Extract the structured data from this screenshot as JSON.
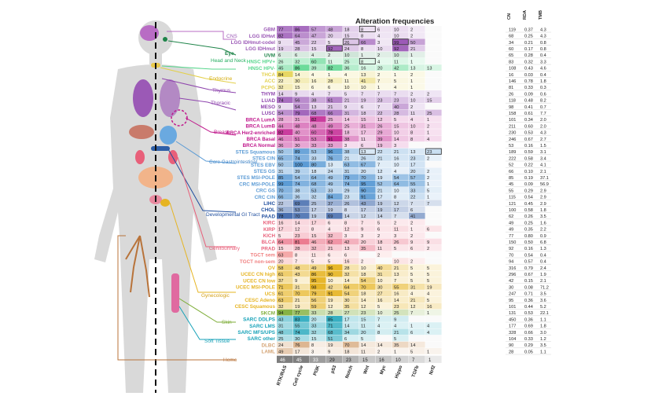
{
  "chart_data": {
    "type": "heatmap",
    "title": "Alteration frequencies",
    "pathways": [
      "RTK/RAS",
      "Cell cycle",
      "PI3K",
      "p53",
      "Notch",
      "Wnt",
      "Myc",
      "Hippo",
      "TGFb",
      "Nrf2"
    ],
    "right_headers": [
      "CN",
      "RDA",
      "TMB"
    ],
    "body_labels": [
      "CNS",
      "Eye",
      "Head and Neck",
      "Endocrine",
      "Thymus",
      "Thoracic",
      "Breast",
      "Core Gastrointestinal",
      "Developmental GI Tract",
      "Genitourinary",
      "Gynecologic",
      "Skin",
      "Soft Tissue",
      "Heme"
    ],
    "rows": [
      {
        "name": "GBM",
        "color": "#9b59b6",
        "values": [
          77,
          86,
          57,
          48,
          18,
          8,
          6,
          10,
          2,
          null
        ],
        "boxed": [
          5
        ],
        "cn": "119",
        "rda": "0.37",
        "tmb": "4.3"
      },
      {
        "name": "LGG IDHwt",
        "color": "#9b59b6",
        "values": [
          82,
          64,
          47,
          20,
          15,
          8,
          4,
          10,
          2,
          null
        ],
        "boxed": [],
        "cn": "68",
        "rda": "0.25",
        "tmb": "4.3"
      },
      {
        "name": "LGG IDHmut-codel",
        "color": "#9b59b6",
        "values": [
          9,
          45,
          22,
          5,
          26,
          66,
          3,
          99,
          50,
          null
        ],
        "boxed": [
          4,
          7
        ],
        "cn": "34",
        "rda": "0.21",
        "tmb": "0.8"
      },
      {
        "name": "LGG IDHmut",
        "color": "#9b59b6",
        "values": [
          19,
          28,
          15,
          92,
          24,
          8,
          10,
          92,
          21,
          null
        ],
        "boxed": [
          3
        ],
        "cn": "60",
        "rda": "0.17",
        "tmb": "0.8"
      },
      {
        "name": "UVM",
        "color": "#1e8449",
        "values": [
          6,
          6,
          4,
          2,
          10,
          1,
          2,
          10,
          1,
          null
        ],
        "boxed": [],
        "cn": "65",
        "rda": "0.28",
        "tmb": "0.4"
      },
      {
        "name": "HNSC HPV+",
        "color": "#58d68d",
        "values": [
          26,
          32,
          60,
          11,
          25,
          8,
          4,
          11,
          1,
          null
        ],
        "boxed": [
          5
        ],
        "cn": "83",
        "rda": "0.32",
        "tmb": "3.3"
      },
      {
        "name": "HNSC HPV-",
        "color": "#58d68d",
        "values": [
          45,
          86,
          39,
          82,
          36,
          16,
          20,
          42,
          13,
          13
        ],
        "boxed": [],
        "cn": "108",
        "rda": "0.43",
        "tmb": "4.6"
      },
      {
        "name": "THCA",
        "color": "#e3d04a",
        "values": [
          84,
          14,
          4,
          1,
          4,
          13,
          2,
          1,
          2,
          null
        ],
        "boxed": [],
        "cn": "16",
        "rda": "0.03",
        "tmb": "0.4"
      },
      {
        "name": "ACC",
        "color": "#e3d04a",
        "values": [
          22,
          30,
          16,
          28,
          11,
          41,
          7,
          5,
          1,
          null
        ],
        "boxed": [],
        "cn": "146",
        "rda": "0.78",
        "tmb": "1.8"
      },
      {
        "name": "PCPG",
        "color": "#e3d04a",
        "values": [
          32,
          15,
          6,
          6,
          10,
          10,
          1,
          4,
          1,
          null
        ],
        "boxed": [],
        "cn": "81",
        "rda": "0.33",
        "tmb": "0.3"
      },
      {
        "name": "THYM",
        "color": "#8e44ad",
        "values": [
          14,
          9,
          4,
          7,
          5,
          7,
          7,
          7,
          2,
          2
        ],
        "boxed": [],
        "cn": "26",
        "rda": "0.09",
        "tmb": "0.6"
      },
      {
        "name": "LUAD",
        "color": "#8e44ad",
        "values": [
          74,
          56,
          38,
          61,
          21,
          19,
          23,
          23,
          10,
          15
        ],
        "boxed": [],
        "cn": "118",
        "rda": "0.48",
        "tmb": "8.2"
      },
      {
        "name": "MESO",
        "color": "#8e44ad",
        "values": [
          9,
          54,
          13,
          21,
          9,
          6,
          7,
          40,
          2,
          null
        ],
        "boxed": [],
        "cn": "98",
        "rda": "0.41",
        "tmb": "0.7"
      },
      {
        "name": "LUSC",
        "color": "#8e44ad",
        "values": [
          54,
          79,
          68,
          66,
          31,
          18,
          22,
          28,
          11,
          25
        ],
        "boxed": [],
        "cn": "158",
        "rda": "0.61",
        "tmb": "7.7"
      },
      {
        "name": "BRCA LumA",
        "color": "#c0188c",
        "values": [
          28,
          31,
          82,
          25,
          14,
          15,
          12,
          5,
          4,
          1
        ],
        "boxed": [],
        "cn": "101",
        "rda": "0.34",
        "tmb": "2.0"
      },
      {
        "name": "BRCA LumB",
        "color": "#c0188c",
        "values": [
          44,
          48,
          48,
          49,
          25,
          31,
          26,
          15,
          10,
          2
        ],
        "boxed": [],
        "cn": "211",
        "rda": "0.60",
        "tmb": "2.0"
      },
      {
        "name": "BRCA Her2-enriched",
        "color": "#c0188c",
        "values": [
          82,
          40,
          60,
          78,
          18,
          17,
          29,
          10,
          8,
          1
        ],
        "boxed": [],
        "cn": "230",
        "rda": "0.53",
        "tmb": "4.3"
      },
      {
        "name": "BRCA Basal",
        "color": "#c0188c",
        "values": [
          46,
          51,
          53,
          91,
          38,
          11,
          39,
          14,
          8,
          4
        ],
        "boxed": [],
        "cn": "246",
        "rda": "0.67",
        "tmb": "2.7"
      },
      {
        "name": "BRCA Normal",
        "color": "#c0188c",
        "values": [
          36,
          30,
          33,
          33,
          3,
          6,
          19,
          3,
          null,
          null
        ],
        "boxed": [],
        "cn": "53",
        "rda": "0.16",
        "tmb": "1.5"
      },
      {
        "name": "STES Squamous",
        "color": "#5b9bd5",
        "values": [
          50,
          89,
          53,
          96,
          38,
          13,
          22,
          21,
          13,
          23
        ],
        "boxed": [
          5,
          9
        ],
        "cn": "189",
        "rda": "0.59",
        "tmb": "3.1"
      },
      {
        "name": "STES CIN",
        "color": "#5b9bd5",
        "values": [
          65,
          74,
          33,
          76,
          21,
          26,
          21,
          16,
          23,
          2
        ],
        "boxed": [],
        "cn": "222",
        "rda": "0.58",
        "tmb": "3.4"
      },
      {
        "name": "STES EBV",
        "color": "#5b9bd5",
        "values": [
          50,
          100,
          80,
          13,
          63,
          67,
          7,
          10,
          17,
          null
        ],
        "boxed": [],
        "cn": "52",
        "rda": "0.22",
        "tmb": "4.1"
      },
      {
        "name": "STES GS",
        "color": "#5b9bd5",
        "values": [
          31,
          39,
          18,
          24,
          31,
          20,
          12,
          4,
          20,
          2
        ],
        "boxed": [],
        "cn": "66",
        "rda": "0.10",
        "tmb": "2.1"
      },
      {
        "name": "STES MSI-POLE",
        "color": "#5b9bd5",
        "values": [
          85,
          54,
          64,
          49,
          79,
          70,
          19,
          54,
          57,
          2
        ],
        "boxed": [],
        "cn": "85",
        "rda": "0.19",
        "tmb": "37.1"
      },
      {
        "name": "CRC MSI-POLE",
        "color": "#5b9bd5",
        "values": [
          99,
          74,
          68,
          49,
          74,
          95,
          52,
          64,
          55,
          1
        ],
        "boxed": [],
        "cn": "45",
        "rda": "0.09",
        "tmb": "56.9"
      },
      {
        "name": "CRC GS",
        "color": "#5b9bd5",
        "values": [
          70,
          38,
          53,
          33,
          29,
          90,
          21,
          10,
          33,
          5
        ],
        "boxed": [],
        "cn": "55",
        "rda": "0.29",
        "tmb": "2.9"
      },
      {
        "name": "CRC CIN",
        "color": "#5b9bd5",
        "values": [
          66,
          36,
          32,
          84,
          23,
          91,
          17,
          8,
          22,
          1
        ],
        "boxed": [],
        "cn": "115",
        "rda": "0.54",
        "tmb": "2.9"
      },
      {
        "name": "LIHC",
        "color": "#1f4e9e",
        "values": [
          22,
          69,
          25,
          37,
          26,
          43,
          19,
          12,
          7,
          7
        ],
        "boxed": [],
        "cn": "121",
        "rda": "0.45",
        "tmb": "2.9"
      },
      {
        "name": "CHOL",
        "color": "#1f4e9e",
        "values": [
          36,
          53,
          17,
          19,
          8,
          17,
          19,
          17,
          6,
          null
        ],
        "boxed": [],
        "cn": "100",
        "rda": "0.58",
        "tmb": "1.8"
      },
      {
        "name": "PAAD",
        "color": "#1f4e9e",
        "values": [
          78,
          70,
          19,
          69,
          14,
          12,
          14,
          7,
          41,
          null
        ],
        "boxed": [],
        "cn": "62",
        "rda": "0.26",
        "tmb": "3.5"
      },
      {
        "name": "KIRC",
        "color": "#e8607a",
        "values": [
          16,
          14,
          17,
          6,
          8,
          7,
          5,
          2,
          2,
          null
        ],
        "boxed": [],
        "cn": "49",
        "rda": "0.25",
        "tmb": "1.6"
      },
      {
        "name": "KIRP",
        "color": "#e8607a",
        "values": [
          17,
          12,
          8,
          4,
          12,
          9,
          6,
          11,
          1,
          6
        ],
        "boxed": [],
        "cn": "49",
        "rda": "0.35",
        "tmb": "2.2"
      },
      {
        "name": "KICH",
        "color": "#e8607a",
        "values": [
          5,
          23,
          15,
          32,
          3,
          3,
          2,
          3,
          2,
          null
        ],
        "boxed": [],
        "cn": "77",
        "rda": "0.80",
        "tmb": "0.9"
      },
      {
        "name": "BLCA",
        "color": "#e8607a",
        "values": [
          64,
          81,
          46,
          62,
          42,
          20,
          18,
          26,
          9,
          9
        ],
        "boxed": [],
        "cn": "150",
        "rda": "0.50",
        "tmb": "6.8"
      },
      {
        "name": "PRAD",
        "color": "#e8607a",
        "values": [
          15,
          28,
          32,
          21,
          13,
          35,
          11,
          5,
          6,
          2
        ],
        "boxed": [],
        "cn": "92",
        "rda": "0.16",
        "tmb": "1.3"
      },
      {
        "name": "TGCT sem",
        "color": "#f08080",
        "values": [
          63,
          8,
          11,
          6,
          6,
          null,
          2,
          null,
          null,
          null
        ],
        "boxed": [],
        "cn": "70",
        "rda": "0.54",
        "tmb": "0.4"
      },
      {
        "name": "TGCT non-sem",
        "color": "#f08080",
        "values": [
          20,
          7,
          5,
          5,
          16,
          2,
          null,
          10,
          2,
          null
        ],
        "boxed": [],
        "cn": "94",
        "rda": "0.57",
        "tmb": "0.4"
      },
      {
        "name": "OV",
        "color": "#e6b422",
        "values": [
          58,
          48,
          49,
          96,
          28,
          10,
          40,
          21,
          5,
          5
        ],
        "boxed": [],
        "cn": "316",
        "rda": "0.79",
        "tmb": "2.4"
      },
      {
        "name": "UCEC CN high",
        "color": "#e6b422",
        "values": [
          61,
          43,
          86,
          90,
          32,
          18,
          31,
          13,
          5,
          5
        ],
        "boxed": [],
        "cn": "296",
        "rda": "0.67",
        "tmb": "1.9"
      },
      {
        "name": "UCEC CN low",
        "color": "#e6b422",
        "values": [
          37,
          9,
          95,
          10,
          14,
          54,
          10,
          7,
          5,
          5
        ],
        "boxed": [],
        "cn": "42",
        "rda": "0.15",
        "tmb": "2.1"
      },
      {
        "name": "UCEC MSI-POLE",
        "color": "#e6b422",
        "values": [
          71,
          31,
          98,
          42,
          64,
          70,
          30,
          55,
          31,
          19
        ],
        "boxed": [],
        "cn": "30",
        "rda": "0.08",
        "tmb": "71.2"
      },
      {
        "name": "UCS",
        "color": "#e6b422",
        "values": [
          61,
          70,
          79,
          91,
          54,
          18,
          27,
          16,
          4,
          4
        ],
        "boxed": [],
        "cn": "247",
        "rda": "0.71",
        "tmb": "3.5"
      },
      {
        "name": "CESC Adeno",
        "color": "#e6b422",
        "values": [
          63,
          21,
          56,
          19,
          30,
          14,
          16,
          14,
          21,
          5
        ],
        "boxed": [],
        "cn": "95",
        "rda": "0.36",
        "tmb": "3.6"
      },
      {
        "name": "CESC Squamous",
        "color": "#e6b422",
        "values": [
          32,
          19,
          59,
          12,
          35,
          12,
          5,
          23,
          12,
          16
        ],
        "boxed": [],
        "cn": "101",
        "rda": "0.44",
        "tmb": "5.2"
      },
      {
        "name": "SKCM",
        "color": "#7fae3a",
        "values": [
          94,
          77,
          33,
          28,
          27,
          23,
          10,
          25,
          7,
          1
        ],
        "boxed": [],
        "cn": "131",
        "rda": "0.53",
        "tmb": "22.1"
      },
      {
        "name": "SARC DDLPS",
        "color": "#17a2b8",
        "values": [
          43,
          83,
          20,
          85,
          17,
          15,
          7,
          9,
          null,
          null
        ],
        "boxed": [],
        "cn": "450",
        "rda": "0.36",
        "tmb": "1.1"
      },
      {
        "name": "SARC LMS",
        "color": "#17a2b8",
        "values": [
          31,
          55,
          33,
          71,
          14,
          11,
          4,
          4,
          1,
          4
        ],
        "boxed": [],
        "cn": "177",
        "rda": "0.69",
        "tmb": "1.8"
      },
      {
        "name": "SARC MFS/UPS",
        "color": "#17a2b8",
        "values": [
          48,
          74,
          32,
          68,
          34,
          20,
          8,
          21,
          6,
          4
        ],
        "boxed": [],
        "cn": "328",
        "rda": "0.66",
        "tmb": "3.0"
      },
      {
        "name": "SARC other",
        "color": "#17a2b8",
        "values": [
          25,
          30,
          15,
          51,
          6,
          5,
          null,
          5,
          null,
          null
        ],
        "boxed": [],
        "cn": "104",
        "rda": "0.33",
        "tmb": "1.2"
      },
      {
        "name": "DLBC",
        "color": "#d4a373",
        "values": [
          24,
          76,
          8,
          19,
          70,
          14,
          14,
          35,
          14,
          null
        ],
        "boxed": [],
        "cn": "90",
        "rda": "0.29",
        "tmb": "3.5"
      },
      {
        "name": "LAML",
        "color": "#d4a373",
        "values": [
          49,
          17,
          3,
          9,
          18,
          11,
          2,
          1,
          5,
          1
        ],
        "boxed": [],
        "cn": "28",
        "rda": "0.05",
        "tmb": "1.1"
      }
    ],
    "summary": [
      46,
      45,
      33,
      29,
      23,
      15,
      16,
      10,
      7,
      1
    ]
  }
}
